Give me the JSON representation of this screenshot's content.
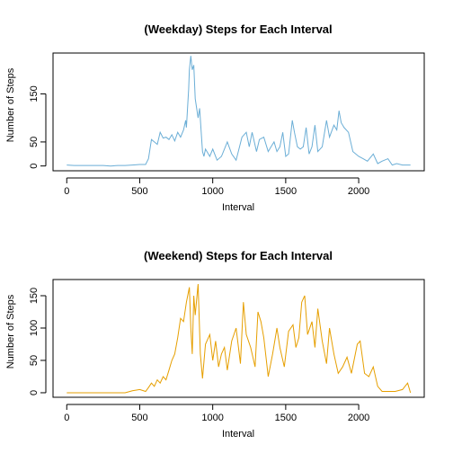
{
  "chart_data": [
    {
      "type": "line",
      "title": "(Weekday) Steps for Each Interval",
      "xlabel": "Interval",
      "ylabel": "Number of Steps",
      "xlim": [
        -94,
        2449
      ],
      "ylim": [
        -10,
        235
      ],
      "xticks": [
        0,
        500,
        1000,
        1500,
        2000
      ],
      "yticks": [
        0,
        50,
        150
      ],
      "ytick_labels": [
        "0",
        "50",
        "150"
      ],
      "color": "#6baed6",
      "grid": false,
      "x": [
        0,
        50,
        100,
        150,
        200,
        250,
        300,
        350,
        400,
        450,
        500,
        540,
        560,
        580,
        600,
        620,
        640,
        660,
        680,
        700,
        720,
        740,
        760,
        780,
        800,
        815,
        820,
        835,
        840,
        850,
        860,
        870,
        880,
        890,
        900,
        910,
        920,
        930,
        940,
        950,
        980,
        1000,
        1030,
        1060,
        1100,
        1130,
        1160,
        1200,
        1230,
        1250,
        1270,
        1300,
        1320,
        1350,
        1380,
        1400,
        1420,
        1440,
        1460,
        1480,
        1500,
        1520,
        1545,
        1560,
        1580,
        1600,
        1620,
        1640,
        1660,
        1680,
        1700,
        1720,
        1750,
        1780,
        1800,
        1830,
        1850,
        1865,
        1880,
        1900,
        1930,
        1960,
        2000,
        2030,
        2060,
        2100,
        2130,
        2160,
        2200,
        2230,
        2260,
        2300,
        2355
      ],
      "y": [
        2,
        1,
        1,
        1,
        1,
        1,
        0,
        1,
        1,
        2,
        3,
        3,
        15,
        55,
        50,
        45,
        70,
        58,
        60,
        55,
        65,
        52,
        70,
        60,
        75,
        95,
        80,
        160,
        200,
        229,
        200,
        210,
        140,
        120,
        100,
        120,
        75,
        30,
        20,
        35,
        20,
        35,
        12,
        20,
        50,
        25,
        12,
        60,
        70,
        40,
        70,
        30,
        55,
        60,
        30,
        40,
        50,
        30,
        40,
        70,
        20,
        25,
        95,
        70,
        40,
        35,
        40,
        80,
        25,
        40,
        85,
        30,
        40,
        95,
        60,
        85,
        75,
        115,
        90,
        80,
        70,
        30,
        20,
        15,
        10,
        25,
        5,
        10,
        15,
        2,
        5,
        2,
        2
      ]
    },
    {
      "type": "line",
      "title": "(Weekend) Steps for Each Interval",
      "xlabel": "Interval",
      "ylabel": "Number of Steps",
      "xlim": [
        -94,
        2449
      ],
      "ylim": [
        -7,
        175
      ],
      "xticks": [
        0,
        500,
        1000,
        1500,
        2000
      ],
      "yticks": [
        0,
        50,
        100,
        150
      ],
      "ytick_labels": [
        "0",
        "50",
        "100",
        "150"
      ],
      "color": "#e69f00",
      "grid": false,
      "x": [
        0,
        30,
        60,
        100,
        150,
        200,
        250,
        300,
        350,
        400,
        450,
        500,
        540,
        560,
        580,
        600,
        620,
        640,
        660,
        680,
        700,
        720,
        740,
        760,
        780,
        800,
        820,
        840,
        850,
        860,
        870,
        880,
        900,
        915,
        930,
        950,
        980,
        1000,
        1020,
        1040,
        1060,
        1080,
        1100,
        1130,
        1160,
        1190,
        1210,
        1230,
        1260,
        1290,
        1310,
        1330,
        1350,
        1380,
        1410,
        1440,
        1460,
        1490,
        1520,
        1550,
        1570,
        1590,
        1610,
        1630,
        1650,
        1680,
        1700,
        1720,
        1750,
        1780,
        1800,
        1830,
        1860,
        1890,
        1920,
        1950,
        1990,
        2010,
        2040,
        2070,
        2100,
        2130,
        2160,
        2200,
        2250,
        2300,
        2335,
        2355
      ],
      "y": [
        0,
        0,
        0,
        0,
        0,
        0,
        0,
        0,
        0,
        0,
        3,
        5,
        2,
        8,
        15,
        10,
        20,
        15,
        25,
        20,
        35,
        50,
        60,
        85,
        115,
        110,
        140,
        163,
        100,
        60,
        150,
        120,
        168,
        60,
        22,
        75,
        90,
        50,
        80,
        40,
        60,
        70,
        35,
        80,
        100,
        45,
        140,
        90,
        70,
        40,
        125,
        110,
        85,
        25,
        60,
        100,
        70,
        40,
        95,
        105,
        70,
        85,
        140,
        150,
        90,
        110,
        70,
        130,
        80,
        45,
        100,
        60,
        30,
        40,
        55,
        30,
        75,
        80,
        30,
        25,
        40,
        10,
        2,
        2,
        2,
        5,
        15,
        0
      ]
    }
  ]
}
